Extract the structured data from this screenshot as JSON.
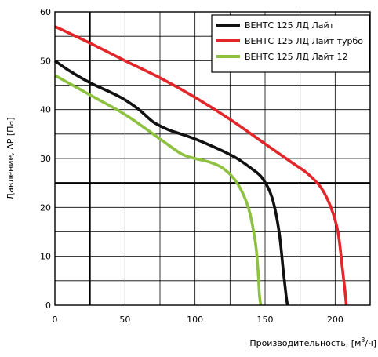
{
  "chart_data": {
    "type": "line",
    "xlabel_main": "Производительность, [м",
    "xlabel_sup": "3",
    "xlabel_tail": "/ч]",
    "ylabel": "Давление, ΔP [Па]",
    "xlim": [
      0,
      225
    ],
    "ylim": [
      0,
      60
    ],
    "x_ticks": [
      0,
      50,
      100,
      150,
      200
    ],
    "y_ticks": [
      0,
      10,
      20,
      30,
      40,
      50,
      60
    ],
    "x_grid": [
      0,
      25,
      50,
      75,
      100,
      125,
      150,
      175,
      200,
      225
    ],
    "y_grid": [
      0,
      5,
      10,
      15,
      20,
      25,
      30,
      35,
      40,
      45,
      50,
      55,
      60
    ],
    "x_guide": 25,
    "y_guide": 25,
    "grid": true,
    "legend_position": "top-right",
    "series": [
      {
        "name": "ВЕНТС 125 ЛД Лайт",
        "color": "#111111",
        "points": [
          [
            0,
            50
          ],
          [
            10,
            48
          ],
          [
            25,
            45.5
          ],
          [
            40,
            43.5
          ],
          [
            50,
            42
          ],
          [
            60,
            40
          ],
          [
            70,
            37.5
          ],
          [
            80,
            36
          ],
          [
            90,
            35
          ],
          [
            100,
            34
          ],
          [
            110,
            32.8
          ],
          [
            120,
            31.5
          ],
          [
            130,
            30
          ],
          [
            140,
            28
          ],
          [
            148,
            26
          ],
          [
            155,
            22
          ],
          [
            160,
            15
          ],
          [
            163,
            7
          ],
          [
            165,
            2
          ],
          [
            166,
            0
          ]
        ]
      },
      {
        "name": "ВЕНТС 125 ЛД Лайт турбо",
        "color": "#e3262a",
        "points": [
          [
            0,
            57
          ],
          [
            25,
            53.6
          ],
          [
            50,
            50
          ],
          [
            75,
            46.5
          ],
          [
            100,
            42.5
          ],
          [
            125,
            38
          ],
          [
            150,
            33
          ],
          [
            170,
            29
          ],
          [
            180,
            27
          ],
          [
            190,
            24
          ],
          [
            197,
            20
          ],
          [
            202,
            15
          ],
          [
            205,
            8
          ],
          [
            207,
            3
          ],
          [
            208,
            0
          ]
        ]
      },
      {
        "name": "ВЕНТС 125 ЛД Лайт 12",
        "color": "#8dc13f",
        "points": [
          [
            0,
            47
          ],
          [
            25,
            43
          ],
          [
            50,
            39
          ],
          [
            75,
            34
          ],
          [
            90,
            31
          ],
          [
            100,
            30
          ],
          [
            110,
            29.3
          ],
          [
            120,
            28
          ],
          [
            130,
            25
          ],
          [
            138,
            20
          ],
          [
            143,
            13
          ],
          [
            145,
            7
          ],
          [
            146,
            2
          ],
          [
            147,
            0
          ]
        ]
      }
    ]
  }
}
